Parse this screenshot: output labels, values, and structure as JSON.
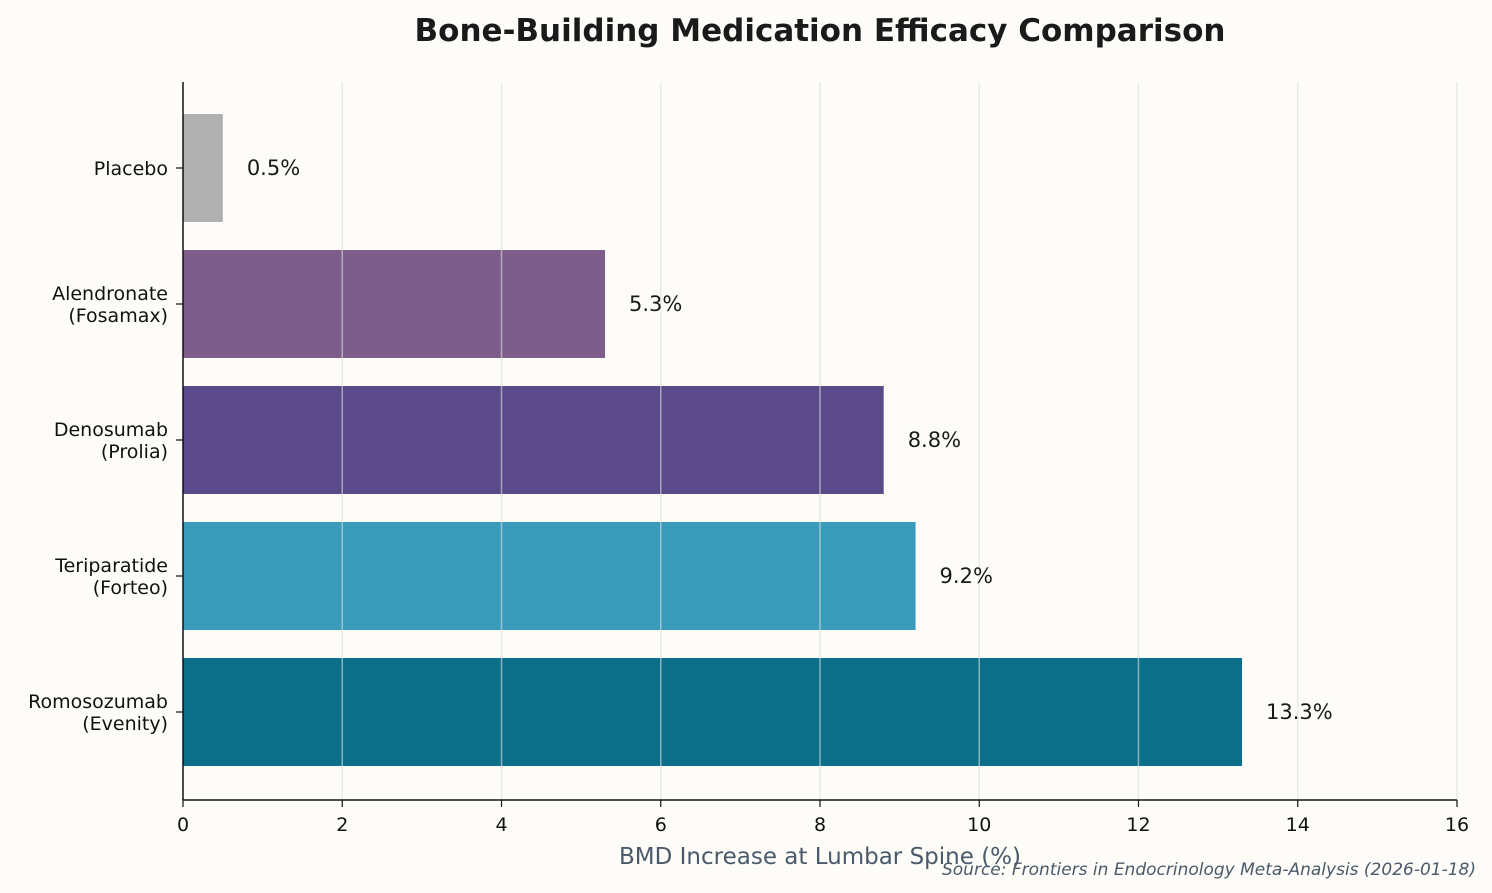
{
  "chart_data": {
    "type": "bar",
    "orientation": "horizontal",
    "title": "Bone-Building Medication Efficacy Comparison",
    "xlabel": "BMD Increase at Lumbar Spine (%)",
    "ylabel": "",
    "xlim": [
      0,
      16
    ],
    "xticks": [
      "0",
      "2",
      "4",
      "6",
      "8",
      "10",
      "12",
      "14",
      "16"
    ],
    "grid": "vertical",
    "categories": [
      [
        "Placebo"
      ],
      [
        "Alendronate",
        "(Fosamax)"
      ],
      [
        "Denosumab",
        "(Prolia)"
      ],
      [
        "Teriparatide",
        "(Forteo)"
      ],
      [
        "Romosozumab",
        "(Evenity)"
      ]
    ],
    "values": [
      0.5,
      5.3,
      8.8,
      9.2,
      13.3
    ],
    "data_labels": [
      "0.5%",
      "5.3%",
      "8.8%",
      "9.2%",
      "13.3%"
    ],
    "colors": [
      "#b0b0b0",
      "#7d5e8a",
      "#5b4a8a",
      "#3a9aba",
      "#0d6e8a"
    ],
    "source": "Source: Frontiers in Endocrinology Meta-Analysis (2026-01-18)"
  }
}
